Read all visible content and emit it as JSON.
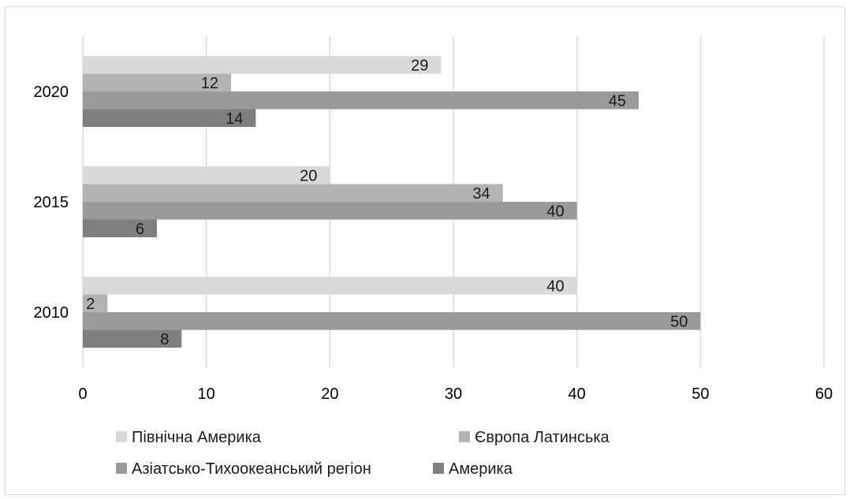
{
  "chart_data": {
    "type": "bar",
    "orientation": "horizontal",
    "categories": [
      "2020",
      "2015",
      "2010"
    ],
    "series": [
      {
        "name": "Північна Америка",
        "color": "#d9d9d9",
        "values": [
          29,
          20,
          40
        ]
      },
      {
        "name": "Європа Латинська",
        "color": "#b3b3b3",
        "values": [
          12,
          34,
          2
        ]
      },
      {
        "name": "Азіатсько-Тихоокеанський регіон",
        "color": "#9a9a9a",
        "values": [
          45,
          40,
          50
        ]
      },
      {
        "name": "Америка",
        "color": "#7f7f7f",
        "values": [
          14,
          6,
          8
        ]
      }
    ],
    "x_ticks": [
      "0",
      "10",
      "20",
      "30",
      "40",
      "50",
      "60"
    ],
    "xlim": [
      0,
      60
    ],
    "grid": "vertical",
    "legend_position": "bottom",
    "title": "",
    "xlabel": "",
    "ylabel": ""
  }
}
